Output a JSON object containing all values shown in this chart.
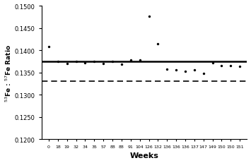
{
  "x_labels": [
    "0",
    "18",
    "19",
    "32",
    "34",
    "35",
    "57",
    "88",
    "88",
    "91",
    "104",
    "126",
    "132",
    "136",
    "136",
    "136",
    "137",
    "147",
    "149",
    "150",
    "150",
    "151"
  ],
  "y_values": [
    0.1408,
    0.1375,
    0.137,
    0.1375,
    0.1372,
    0.1375,
    0.137,
    0.1375,
    0.1368,
    0.1378,
    0.1378,
    0.1477,
    0.1415,
    0.1358,
    0.1355,
    0.1353,
    0.1355,
    0.1348,
    0.1372,
    0.1365,
    0.1365,
    0.1363
  ],
  "mean_line": 0.1375,
  "natural_abundance_line": 0.133,
  "ylabel": "$^{53}$Fe : $^{57}$Fe Ratio",
  "xlabel": "Weeks",
  "ylim": [
    0.12,
    0.15
  ],
  "yticks": [
    0.12,
    0.125,
    0.13,
    0.135,
    0.14,
    0.145,
    0.15
  ],
  "marker_color": "black",
  "line_color": "black",
  "background_color": "white",
  "x_tick_positions": [
    0,
    1,
    2,
    3,
    4,
    5,
    6,
    7,
    8,
    9,
    10,
    11,
    12,
    13,
    14,
    15,
    16,
    17,
    18,
    19,
    20,
    21
  ]
}
